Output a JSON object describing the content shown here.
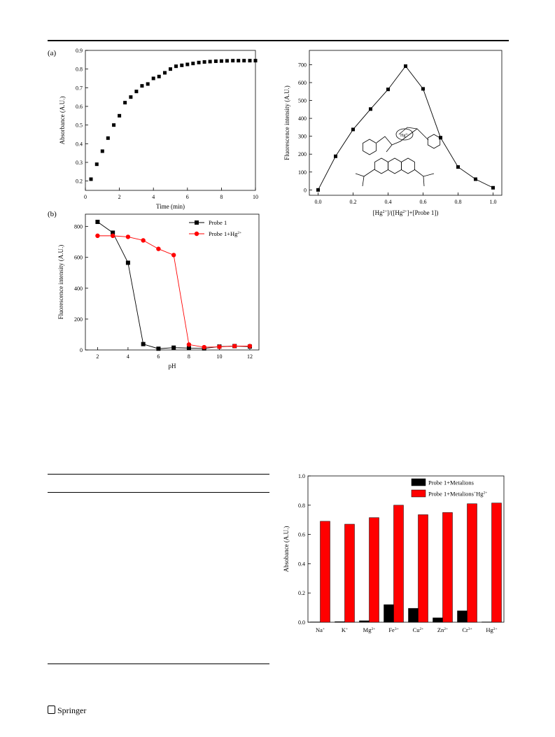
{
  "footer": {
    "publisher": "Springer"
  },
  "charts": {
    "a": {
      "panel_label": "(a)"
    },
    "b": {
      "panel_label": "(b)"
    }
  },
  "chart_data": [
    {
      "type": "scatter",
      "panel": "(a)",
      "xlabel": "Time (min)",
      "ylabel": "Absorbance (A.U.)",
      "xlim": [
        0,
        10
      ],
      "ylim": [
        0.15,
        0.9
      ],
      "xticks": [
        0,
        2,
        4,
        6,
        8,
        10
      ],
      "yticks": [
        0.2,
        0.3,
        0.4,
        0.5,
        0.6,
        0.7,
        0.8,
        0.9
      ],
      "x": [
        0.33,
        0.67,
        1.0,
        1.33,
        1.67,
        2.0,
        2.33,
        2.67,
        3.0,
        3.33,
        3.67,
        4.0,
        4.33,
        4.67,
        5.0,
        5.33,
        5.67,
        6.0,
        6.33,
        6.67,
        7.0,
        7.33,
        7.67,
        8.0,
        8.33,
        8.67,
        9.0,
        9.33,
        9.67,
        10.0
      ],
      "y": [
        0.21,
        0.29,
        0.36,
        0.43,
        0.5,
        0.55,
        0.62,
        0.65,
        0.68,
        0.71,
        0.72,
        0.75,
        0.76,
        0.78,
        0.8,
        0.815,
        0.82,
        0.825,
        0.83,
        0.835,
        0.838,
        0.84,
        0.842,
        0.843,
        0.844,
        0.845,
        0.845,
        0.845,
        0.845,
        0.845
      ]
    },
    {
      "type": "line",
      "panel": "(b)",
      "xlabel": "pH",
      "ylabel": "Fluorescence intensity (A.U.)",
      "xlim": [
        1.2,
        12.6
      ],
      "ylim": [
        0,
        880
      ],
      "xticks": [
        2,
        4,
        6,
        8,
        10,
        12
      ],
      "yticks": [
        0,
        200,
        400,
        600,
        800
      ],
      "legend_position": "top-right",
      "series": [
        {
          "name": "Probe 1",
          "color": "#000000",
          "marker": "square",
          "x": [
            2,
            3,
            4,
            5,
            6,
            7,
            8,
            9,
            10,
            11,
            12
          ],
          "y": [
            830,
            760,
            565,
            38,
            8,
            15,
            12,
            10,
            22,
            25,
            22
          ]
        },
        {
          "name": "Probe 1+Hg2+",
          "color": "#ff0000",
          "marker": "circle",
          "x": [
            2,
            3,
            4,
            5,
            6,
            7,
            8,
            9,
            10,
            11,
            12
          ],
          "y": [
            740,
            740,
            733,
            710,
            655,
            615,
            35,
            18,
            20,
            25,
            25
          ]
        }
      ]
    },
    {
      "type": "line",
      "xlabel": "[Hg2+]/([Hg2+]+[Probe 1])",
      "ylabel": "Fluorescence  intensity (A.U.)",
      "xlim": [
        -0.05,
        1.05
      ],
      "ylim": [
        -30,
        780
      ],
      "xticks": [
        "0.0",
        "0.2",
        "0.4",
        "0.6",
        "0.8",
        "1.0"
      ],
      "yticks": [
        0,
        100,
        200,
        300,
        400,
        500,
        600,
        700
      ],
      "series": [
        {
          "name": "",
          "color": "#000000",
          "x": [
            0.0,
            0.1,
            0.2,
            0.3,
            0.4,
            0.5,
            0.6,
            0.7,
            0.8,
            0.9,
            1.0
          ],
          "y": [
            0,
            188,
            338,
            452,
            562,
            692,
            565,
            292,
            128,
            60,
            12
          ]
        }
      ],
      "annotation": "Hg2+"
    },
    {
      "type": "bar",
      "ylabel": "Absobance (A.U.)",
      "ylim": [
        0,
        1.0
      ],
      "yticks": [
        "0.0",
        "0.2",
        "0.4",
        "0.6",
        "0.8",
        "1.0"
      ],
      "categories": [
        "Na+",
        "K+",
        "Mg2+",
        "Fe3+",
        "Cu2+",
        "Zn2+",
        "Cr3+",
        "Hg2+"
      ],
      "legend_position": "top-right",
      "series": [
        {
          "name": "Probe 1+Metalions",
          "color": "#000000",
          "values": [
            0.002,
            0.004,
            0.01,
            0.12,
            0.095,
            0.03,
            0.078,
            0.002
          ]
        },
        {
          "name": "Probe 1+Metalions+Hg2+",
          "color": "#ff0000",
          "values": [
            0.69,
            0.67,
            0.715,
            0.8,
            0.735,
            0.75,
            0.81,
            0.815
          ]
        }
      ]
    }
  ]
}
